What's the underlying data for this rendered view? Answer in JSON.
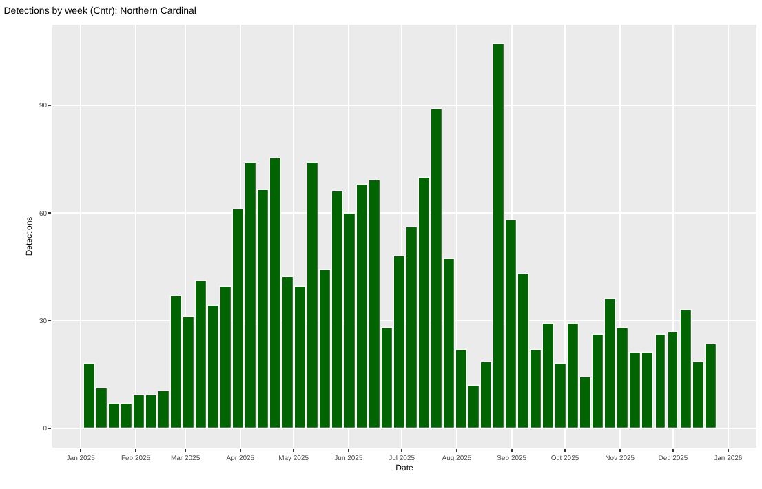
{
  "chart_data": {
    "type": "bar",
    "title": "Detections by week (Cntr): Northern Cardinal",
    "xlabel": "Date",
    "ylabel": "Detections",
    "x": [
      "2025-01-06",
      "2025-01-13",
      "2025-01-20",
      "2025-01-27",
      "2025-02-03",
      "2025-02-10",
      "2025-02-17",
      "2025-02-24",
      "2025-03-03",
      "2025-03-10",
      "2025-03-17",
      "2025-03-24",
      "2025-03-31",
      "2025-04-07",
      "2025-04-14",
      "2025-04-21",
      "2025-04-28",
      "2025-05-05",
      "2025-05-12",
      "2025-05-19",
      "2025-05-26",
      "2025-06-02",
      "2025-06-09",
      "2025-06-16",
      "2025-06-23",
      "2025-06-30",
      "2025-07-07",
      "2025-07-14",
      "2025-07-21",
      "2025-07-28",
      "2025-08-04",
      "2025-08-11",
      "2025-08-18",
      "2025-08-25",
      "2025-09-01",
      "2025-09-08",
      "2025-09-15",
      "2025-09-22",
      "2025-09-29",
      "2025-10-06",
      "2025-10-13",
      "2025-10-20",
      "2025-10-27",
      "2025-11-03",
      "2025-11-10",
      "2025-11-17",
      "2025-11-24",
      "2025-12-01",
      "2025-12-08",
      "2025-12-15",
      "2025-12-22"
    ],
    "values": [
      18,
      11,
      7,
      7,
      9,
      9,
      10.5,
      37,
      31,
      41,
      34,
      39.5,
      61,
      74,
      66.5,
      75,
      42,
      39.5,
      74,
      44,
      66,
      60,
      68,
      69,
      28,
      48,
      56,
      70,
      89,
      47,
      22,
      12,
      18.5,
      107,
      58,
      43,
      22,
      29,
      18,
      29,
      14,
      26,
      36,
      28,
      21,
      21,
      26,
      27,
      33,
      18.5,
      23.5
    ],
    "color": "#006400",
    "xlim": [
      "2024-12-16",
      "2026-01-17"
    ],
    "xticks": [
      {
        "value": "2025-01-01",
        "label": "Jan 2025"
      },
      {
        "value": "2025-02-01",
        "label": "Feb 2025"
      },
      {
        "value": "2025-03-01",
        "label": "Mar 2025"
      },
      {
        "value": "2025-04-01",
        "label": "Apr 2025"
      },
      {
        "value": "2025-05-01",
        "label": "May 2025"
      },
      {
        "value": "2025-06-01",
        "label": "Jun 2025"
      },
      {
        "value": "2025-07-01",
        "label": "Jul 2025"
      },
      {
        "value": "2025-08-01",
        "label": "Aug 2025"
      },
      {
        "value": "2025-09-01",
        "label": "Sep 2025"
      },
      {
        "value": "2025-10-01",
        "label": "Oct 2025"
      },
      {
        "value": "2025-11-01",
        "label": "Nov 2025"
      },
      {
        "value": "2025-12-01",
        "label": "Dec 2025"
      },
      {
        "value": "2026-01-01",
        "label": "Jan 2026"
      }
    ],
    "ylim": [
      -5.4,
      112.4
    ],
    "yticks": [
      0,
      30,
      60,
      90
    ],
    "grid": true,
    "legend": false
  }
}
